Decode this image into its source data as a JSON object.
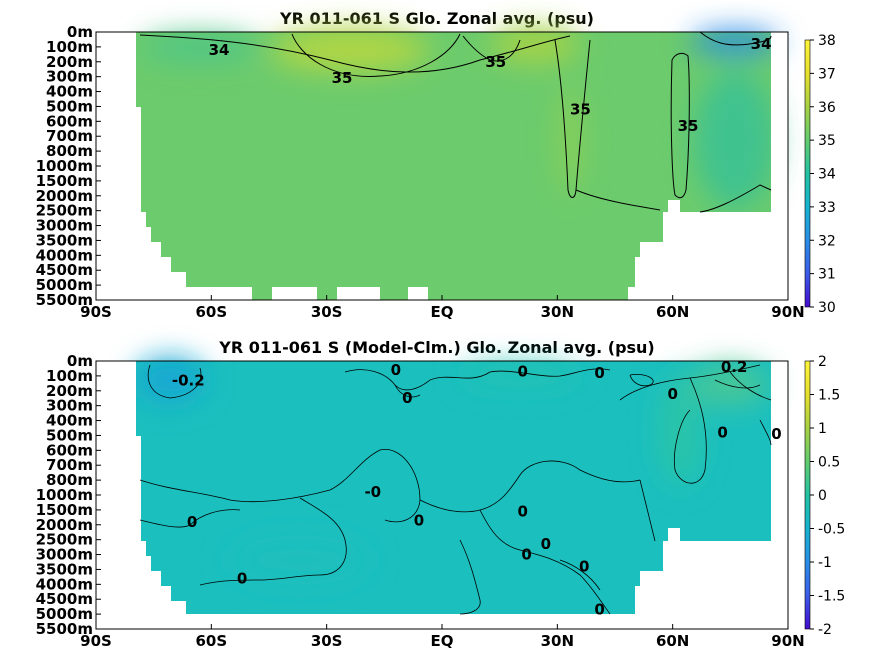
{
  "colors": {
    "colormap": [
      "#440ccd",
      "#3a5ce8",
      "#2a8ee6",
      "#17b3cf",
      "#24c2a3",
      "#62cc6e",
      "#a8d043",
      "#e6e02e",
      "#fdf43a"
    ],
    "land": "#ffffff",
    "contour": "#000000"
  },
  "chart_data": [
    {
      "type": "heatmap",
      "title": "YR 011-061 S Glo. Zonal avg. (psu)",
      "x_tick_labels": [
        "90S",
        "60S",
        "30S",
        "EQ",
        "30N",
        "60N",
        "90N"
      ],
      "x_ticks": [
        -90,
        -60,
        -30,
        0,
        30,
        60,
        90
      ],
      "y_tick_labels": [
        "0m",
        "100m",
        "200m",
        "300m",
        "400m",
        "500m",
        "600m",
        "700m",
        "800m",
        "1000m",
        "1500m",
        "2000m",
        "2500m",
        "3000m",
        "3500m",
        "4000m",
        "4500m",
        "5000m",
        "5500m"
      ],
      "colorbar": {
        "min": 30,
        "max": 38,
        "tick_labels": [
          "30",
          "31",
          "32",
          "33",
          "34",
          "35",
          "36",
          "37",
          "38"
        ]
      },
      "contour_labels": [
        {
          "text": "34",
          "lat": -58,
          "level": 1.2
        },
        {
          "text": "35",
          "lat": -26,
          "level": 3.1
        },
        {
          "text": "35",
          "lat": 14,
          "level": 2.0
        },
        {
          "text": "35",
          "lat": 36,
          "level": 5.2
        },
        {
          "text": "35",
          "lat": 64,
          "level": 6.3
        },
        {
          "text": "34",
          "lat": 83,
          "level": 0.8
        }
      ],
      "fields": [
        {
          "lat": -60,
          "level": 5,
          "value": 34.4
        },
        {
          "lat": -15,
          "level": 1.2,
          "value": 35.9
        },
        {
          "lat": 22,
          "level": 1,
          "value": 35.8
        },
        {
          "lat": 37,
          "level": 5,
          "value": 35.3
        },
        {
          "lat": 78,
          "level": 0.3,
          "value": 32.8
        },
        {
          "lat": 0,
          "level": 10,
          "value": 34.7
        },
        {
          "lat": -40,
          "level": 12,
          "value": 34.7
        }
      ],
      "background_value": 34.75
    },
    {
      "type": "heatmap",
      "title": "YR 011-061 S (Model-Clm.) Glo. Zonal avg. (psu)",
      "x_tick_labels": [
        "90S",
        "60S",
        "30S",
        "EQ",
        "30N",
        "60N",
        "90N"
      ],
      "x_ticks": [
        -90,
        -60,
        -30,
        0,
        30,
        60,
        90
      ],
      "y_tick_labels": [
        "0m",
        "100m",
        "200m",
        "300m",
        "400m",
        "500m",
        "600m",
        "700m",
        "800m",
        "1000m",
        "1500m",
        "2000m",
        "2500m",
        "3000m",
        "3500m",
        "4000m",
        "4500m",
        "5000m",
        "5500m"
      ],
      "colorbar": {
        "min": -2,
        "max": 2,
        "tick_labels": [
          "-2",
          "-1.5",
          "-1",
          "-0.5",
          "0",
          "0.5",
          "1",
          "1.5",
          "2"
        ]
      },
      "contour_labels": [
        {
          "text": "-0.2",
          "lat": -66,
          "level": 1.3
        },
        {
          "text": "0",
          "lat": -12,
          "level": 0.6
        },
        {
          "text": "0",
          "lat": -9,
          "level": 2.5
        },
        {
          "text": "0",
          "lat": 21,
          "level": 0.7
        },
        {
          "text": "0",
          "lat": 41,
          "level": 0.8
        },
        {
          "text": "0",
          "lat": 60,
          "level": 2.2
        },
        {
          "text": "0.2",
          "lat": 76,
          "level": 0.4
        },
        {
          "text": "0",
          "lat": 73,
          "level": 4.8
        },
        {
          "text": "0",
          "lat": 87,
          "level": 4.9
        },
        {
          "text": "-0",
          "lat": -18,
          "level": 8.8
        },
        {
          "text": "0",
          "lat": -65,
          "level": 10.8
        },
        {
          "text": "0",
          "lat": -6,
          "level": 10.7
        },
        {
          "text": "0",
          "lat": 21,
          "level": 10.1
        },
        {
          "text": "0",
          "lat": 27,
          "level": 12.3
        },
        {
          "text": "0",
          "lat": 22,
          "level": 13.0
        },
        {
          "text": "0",
          "lat": 37,
          "level": 13.8
        },
        {
          "text": "0",
          "lat": -52,
          "level": 14.6
        },
        {
          "text": "0",
          "lat": 41,
          "level": 16.7
        }
      ],
      "fields": [
        {
          "lat": -70,
          "level": 1,
          "value": -0.35
        },
        {
          "lat": 80,
          "level": 0.4,
          "value": 0.5
        },
        {
          "lat": 62,
          "level": 3,
          "value": 0.25
        },
        {
          "lat": 20,
          "level": 1,
          "value": 0.15
        }
      ],
      "background_value": 0
    }
  ]
}
